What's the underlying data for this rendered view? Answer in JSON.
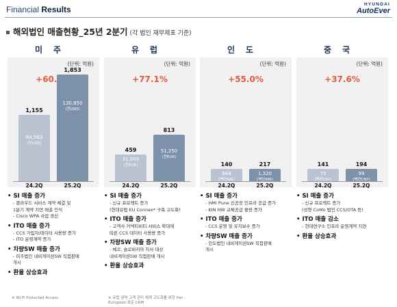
{
  "header": {
    "title_light": "Financial ",
    "title_bold": "Results",
    "logo_top": "HYUNDAI",
    "logo_bottom": "AutoEver"
  },
  "section": {
    "title": "해외법인 매출현황_25년 2분기",
    "note": "(각 법인 재무제표 기준)"
  },
  "regions": [
    {
      "name": "미주",
      "unit": "(단위: 억원)",
      "growth": "+60.4%",
      "q1": "24.2Q",
      "q2": "25.2Q",
      "v1": "1,155",
      "v2": "1,853",
      "in1": "84,563",
      "in1sub": "(천USD)",
      "in2": "130,850",
      "in2sub": "(천USD)",
      "points": [
        {
          "h": "SI 매출 증가",
          "d": [
            "- 클라우드 서비스 계약 체결 및",
            "  1분기 계약 지연 매출 인식",
            "- Cisco WPA 사업 경신"
          ]
        },
        {
          "h": "ITO 매출 증가",
          "d": [
            "- CCS 가입자/데이터 사용량 증가",
            "- ITO 운영계약 증가"
          ]
        },
        {
          "h": "차량SW 매출 증가",
          "d": [
            "- 미주법인 내비게이션SW 직접판매",
            "  개시"
          ]
        },
        {
          "h": "환율 상승효과",
          "d": []
        }
      ],
      "footnote": "※ Wi-Fi Protected Access"
    },
    {
      "name": "유럽",
      "unit": "(단위: 억원)",
      "growth": "+77.1%",
      "q1": "24.2Q",
      "q2": "25.2Q",
      "v1": "459",
      "v2": "813",
      "in1": "31,003",
      "in1sub": "(천EUR)",
      "in2": "51,250",
      "in2sub": "(천EUR)",
      "points": [
        {
          "h": "SI 매출 증가",
          "d": [
            "- 신규 프로젝트 증가",
            "  (현대유럽 EU Connex* 구축 고도화)"
          ]
        },
        {
          "h": "ITO 매출 증가",
          "d": [
            "- 고객사 커넥티비티 서비스 확대에",
            "  따른 CCS 데이터 사용량 증가"
          ]
        },
        {
          "h": "차량SW 매출 증가",
          "d": [
            "- 체코, 슬로바키아 지사 대상",
            "  내비게이션SW 직접판매 개시"
          ]
        },
        {
          "h": "환율 상승효과",
          "d": []
        }
      ],
      "footnote": "※ 유럽 권역 고객 관리 체계 고도화를 위한 Pan European 표준 CRM"
    },
    {
      "name": "인도",
      "unit": "(단위: 억원)",
      "growth": "+55.0%",
      "q1": "24.2Q",
      "q2": "25.2Q",
      "v1": "140",
      "v2": "217",
      "in1": "848",
      "in1sub": "(백만INR)",
      "in2": "1,320",
      "in2sub": "(백만INR)",
      "points": [
        {
          "h": "SI 매출 증가",
          "d": [
            "- HMI Pune 신공장 인프라 공급 증가",
            "- KIN HW 교체공급 물량 증가"
          ]
        },
        {
          "h": "ITO 매출 증가",
          "d": [
            "- CCS 운영 및 유지보수 증가"
          ]
        },
        {
          "h": "차량SW 매출 증가",
          "d": [
            "- 인도법인 내비게이션SW 직접판매",
            "  개시"
          ]
        }
      ],
      "footnote": ""
    },
    {
      "name": "중국",
      "unit": "(단위: 억원)",
      "growth": "+37.6%",
      "q1": "24.2Q",
      "q2": "25.2Q",
      "v1": "141",
      "v2": "194",
      "in1": "75",
      "in1sub": "(백만CNY)",
      "in2": "99",
      "in2sub": "(백만CNY)",
      "points": [
        {
          "h": "SI 매출 증가",
          "d": [
            "- 신규 프로젝트 증가",
            "  (성형 CoMo 법인 CCS/OTA 등)"
          ]
        },
        {
          "h": "ITO 매출 감소",
          "d": [
            "- 현대연구소 인프라 운영계약 지연"
          ]
        },
        {
          "h": "환율 상승효과",
          "d": []
        }
      ],
      "footnote": ""
    }
  ],
  "chart_data": {
    "type": "bar",
    "categories": [
      "24.2Q",
      "25.2Q"
    ],
    "unit": "(단위: 억원)",
    "series": [
      {
        "name": "미주",
        "values": [
          1155,
          1853
        ]
      },
      {
        "name": "유럽",
        "values": [
          459,
          813
        ]
      },
      {
        "name": "인도",
        "values": [
          140,
          217
        ]
      },
      {
        "name": "중국",
        "values": [
          141,
          194
        ]
      }
    ],
    "ylim": [
      0,
      1900
    ]
  }
}
